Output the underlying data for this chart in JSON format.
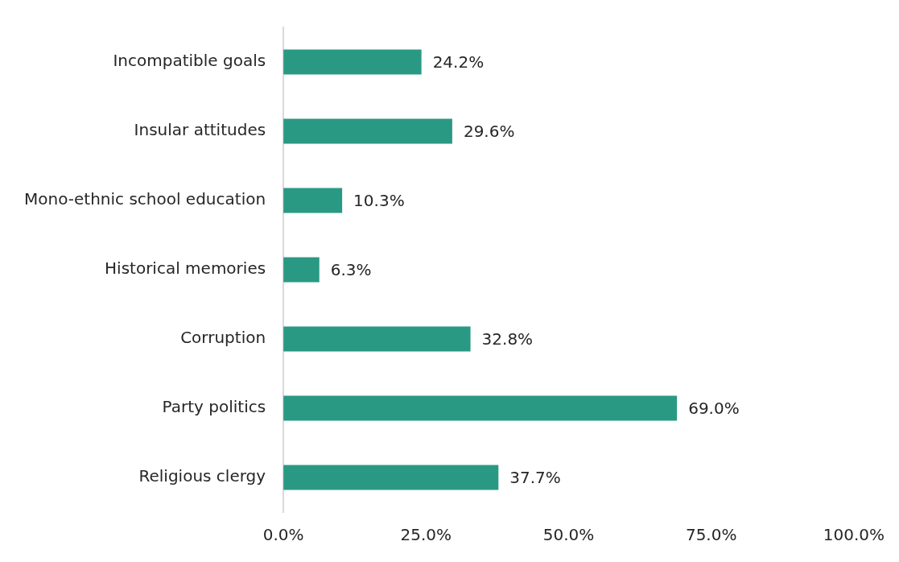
{
  "chart_data": {
    "type": "bar",
    "orientation": "horizontal",
    "categories": [
      "Incompatible goals",
      "Insular attitudes",
      "Mono-ethnic school education",
      "Historical memories",
      "Corruption",
      "Party politics",
      "Religious clergy"
    ],
    "values": [
      24.2,
      29.6,
      10.3,
      6.3,
      32.8,
      69.0,
      37.7
    ],
    "value_labels": [
      "24.2%",
      "29.6%",
      "10.3%",
      "6.3%",
      "32.8%",
      "69.0%",
      "37.7%"
    ],
    "color": "#2a9984",
    "xlim": [
      0,
      100
    ],
    "xticks": [
      {
        "value": 0,
        "label": "0.0%"
      },
      {
        "value": 25,
        "label": "25.0%"
      },
      {
        "value": 50,
        "label": "50.0%"
      },
      {
        "value": 75,
        "label": "75.0%"
      },
      {
        "value": 100,
        "label": "100.0%"
      }
    ],
    "grid": false,
    "legend": false
  }
}
